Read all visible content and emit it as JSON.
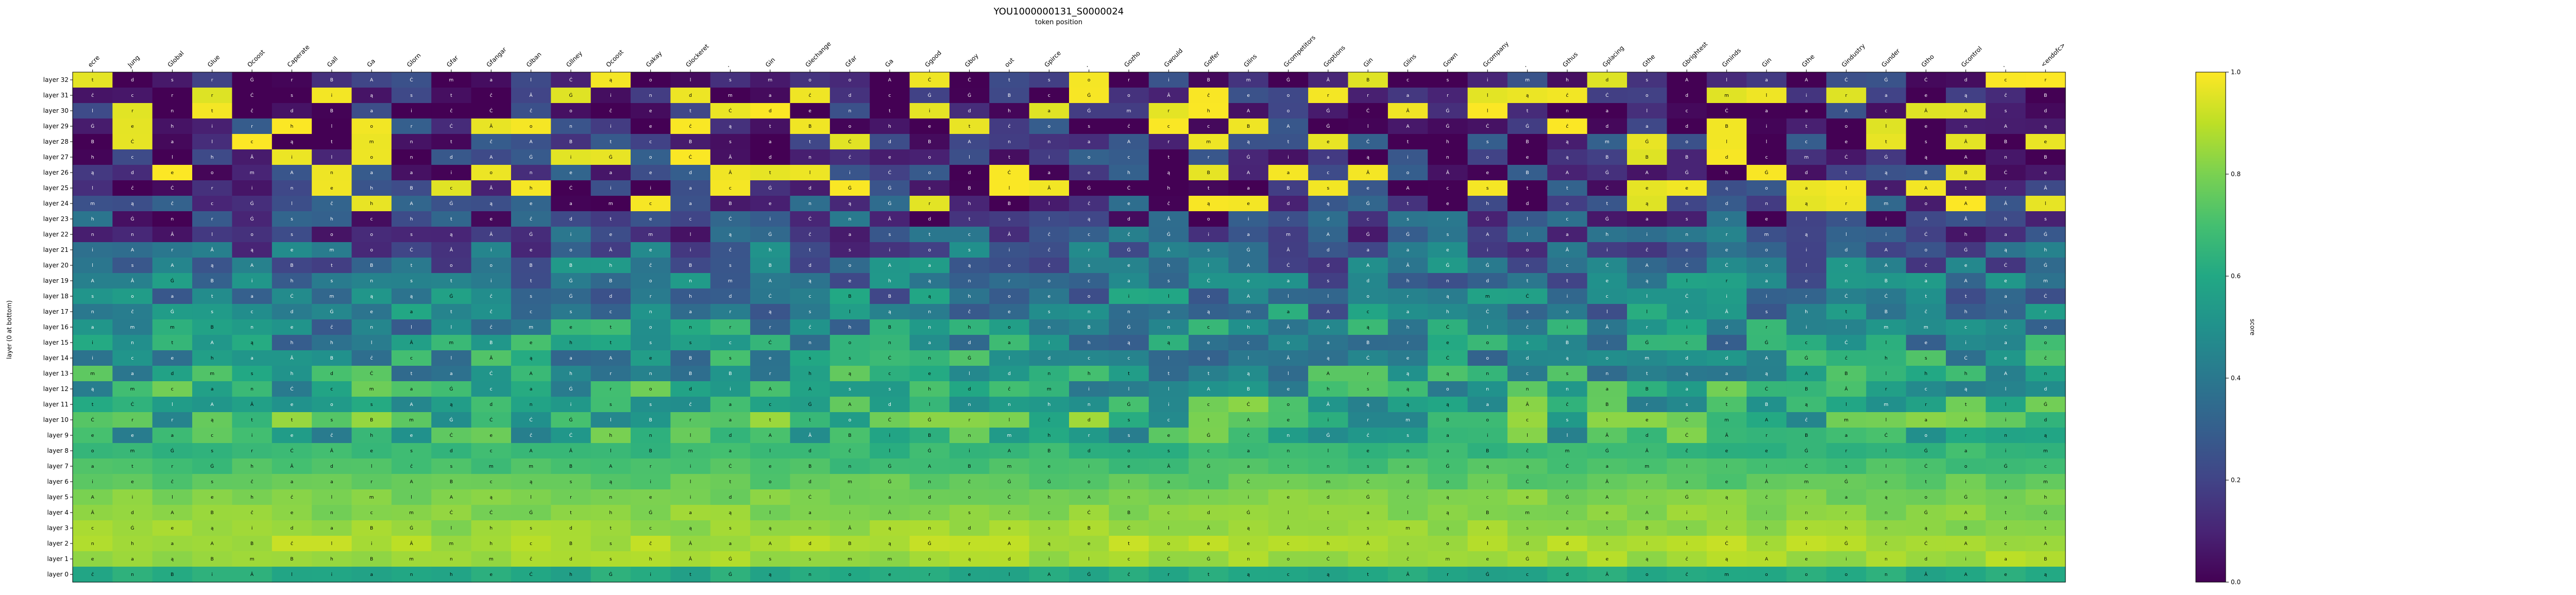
{
  "chart_data": {
    "type": "heatmap",
    "title": "YOU1000000131_S0000024",
    "xlabel": "token position",
    "ylabel": "layer (0 at bottom)",
    "x_tokens": [
      "ecre",
      "Jung",
      "Global",
      "Glue",
      "Ocoost",
      "Caperate",
      "Gall",
      "Ga",
      "Glorn",
      "Gfar",
      "Gfangar",
      "Glban",
      "Gllney",
      "Ocoost",
      "Gakay",
      "Glockeret",
      ".",
      "Gin",
      "Glechange",
      "Gfar",
      "Ga",
      "Ggood",
      "Gboy",
      "out",
      "Gpirce",
      ".",
      "Gozho",
      "Gwould",
      "Goffer",
      "Glins",
      "Gcompetitors",
      "Goptions",
      "Gin",
      "Glins",
      "Gown",
      "Gcompany",
      ".",
      "Gthus",
      "Gplacing",
      "Gthe",
      "Gbrightest",
      "Gminds",
      "Gin",
      "Gthe",
      "Gindustry",
      "Gunder",
      "Gtho",
      "Gcontrol",
      ".",
      "<endofc>"
    ],
    "y_labels": [
      "layer 32",
      "layer 31",
      "layer 30",
      "layer 29",
      "layer 28",
      "layer 27",
      "layer 26",
      "layer 25",
      "layer 24",
      "layer 23",
      "layer 22",
      "layer 21",
      "layer 20",
      "layer 19",
      "layer 18",
      "layer 17",
      "layer 16",
      "layer 15",
      "layer 14",
      "layer 13",
      "layer 12",
      "layer 11",
      "layer 10",
      "layer 9",
      "layer 8",
      "layer 7",
      "layer 6",
      "layer 5",
      "layer 4",
      "layer 3",
      "layer 2",
      "layer 1",
      "layer 0"
    ],
    "colorbar": {
      "label": "score",
      "range": [
        0.0,
        1.0
      ],
      "ticks": [
        "0.0",
        "0.2",
        "0.4",
        "0.6",
        "0.8",
        "1.0"
      ],
      "colormap": "viridis"
    },
    "cell_glyphs": [
      "e",
      "a",
      "t",
      "o",
      "s",
      "n",
      "i",
      "m",
      "r",
      "l",
      "c",
      "d",
      "h",
      "A",
      "B",
      "Â",
      "Ġ",
      "ĉ",
      "Ċ",
      "ą"
    ],
    "band_means": [
      0.06,
      0.07,
      0.08,
      0.09,
      0.1,
      0.11,
      0.12,
      0.13,
      0.16,
      0.2,
      0.24,
      0.3,
      0.35,
      0.37,
      0.4,
      0.43,
      0.48,
      0.5,
      0.52,
      0.55,
      0.58,
      0.62,
      0.65,
      0.62,
      0.66,
      0.7,
      0.75,
      0.8,
      0.82,
      0.84,
      0.88,
      0.86,
      0.6
    ]
  }
}
